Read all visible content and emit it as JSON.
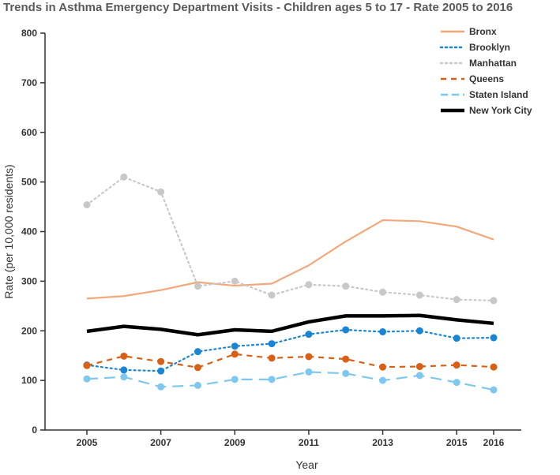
{
  "chart_data": {
    "type": "line",
    "title": "Trends in Asthma Emergency Department Visits - Children ages 5 to 17 - Rate 2005 to 2016",
    "xlabel": "Year",
    "ylabel": "Rate (per 10,000 residents)",
    "x": [
      2005,
      2006,
      2007,
      2008,
      2009,
      2010,
      2011,
      2012,
      2013,
      2014,
      2015,
      2016
    ],
    "xticks": [
      "2005",
      "2007",
      "2009",
      "2011",
      "2013",
      "2015",
      "2016"
    ],
    "ylim": [
      0,
      800
    ],
    "yticks": [
      "0",
      "100",
      "200",
      "300",
      "400",
      "500",
      "600",
      "700",
      "800"
    ],
    "grid": false,
    "legend_position": "top-right",
    "series": [
      {
        "name": "Bronx",
        "color": "#f4a77a",
        "style": "solid",
        "markers": false,
        "values": [
          265,
          270,
          282,
          298,
          291,
          295,
          332,
          380,
          423,
          421,
          410,
          384
        ]
      },
      {
        "name": "Brooklyn",
        "color": "#1a85d3",
        "style": "dotted",
        "markers": true,
        "values": [
          131,
          121,
          119,
          158,
          169,
          174,
          193,
          202,
          198,
          200,
          185,
          186
        ]
      },
      {
        "name": "Manhattan",
        "color": "#c8c8c8",
        "style": "dotted",
        "markers": true,
        "values": [
          454,
          510,
          480,
          290,
          300,
          272,
          293,
          290,
          278,
          272,
          263,
          261
        ]
      },
      {
        "name": "Queens",
        "color": "#d95f14",
        "style": "dashed",
        "markers": true,
        "values": [
          130,
          149,
          138,
          126,
          153,
          145,
          148,
          143,
          127,
          128,
          131,
          127
        ]
      },
      {
        "name": "Staten Island",
        "color": "#7ec8ef",
        "style": "longdash",
        "markers": true,
        "values": [
          103,
          107,
          87,
          90,
          102,
          102,
          117,
          114,
          100,
          110,
          96,
          81
        ]
      },
      {
        "name": "New York City",
        "color": "#000000",
        "style": "thick",
        "markers": false,
        "values": [
          199,
          209,
          203,
          192,
          202,
          199,
          218,
          230,
          230,
          231,
          222,
          215
        ]
      }
    ]
  }
}
